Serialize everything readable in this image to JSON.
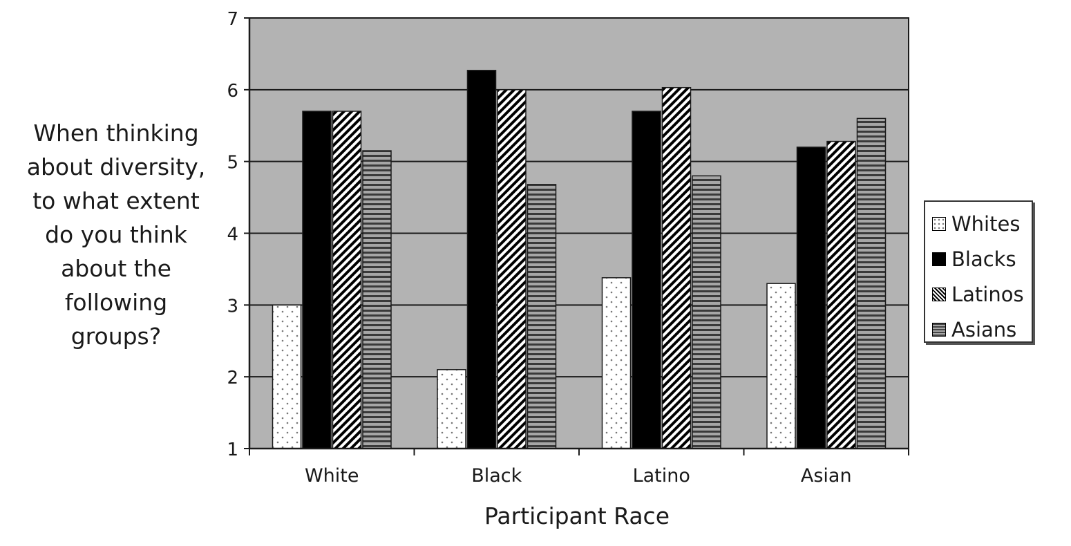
{
  "chart_data": {
    "type": "bar",
    "title": "",
    "ylabel": "When thinking about diversity, to what extent do you think about the following groups?",
    "ylabel_lines": [
      "When thinking",
      "about diversity,",
      "to what extent",
      "do you think",
      "about the",
      "following",
      "groups?"
    ],
    "xlabel": "Participant Race",
    "categories": [
      "White",
      "Black",
      "Latino",
      "Asian"
    ],
    "ylim": [
      1,
      7
    ],
    "yticks": [
      "1",
      "2",
      "3",
      "4",
      "5",
      "6",
      "7"
    ],
    "grid": true,
    "legend_position": "right",
    "series": [
      {
        "name": "Whites",
        "values": [
          3.0,
          2.1,
          3.38,
          3.3
        ],
        "pattern": "dots"
      },
      {
        "name": "Blacks",
        "values": [
          5.7,
          6.27,
          5.7,
          5.2
        ],
        "pattern": "solid"
      },
      {
        "name": "Latinos",
        "values": [
          5.7,
          6.0,
          6.03,
          5.28
        ],
        "pattern": "diagonal"
      },
      {
        "name": "Asians",
        "values": [
          5.15,
          4.68,
          4.8,
          5.6
        ],
        "pattern": "horizontal"
      }
    ]
  },
  "colors": {
    "plot_background": "#b3b3b3",
    "gridline": "#1a1a1a",
    "text": "#1a1a1a"
  }
}
